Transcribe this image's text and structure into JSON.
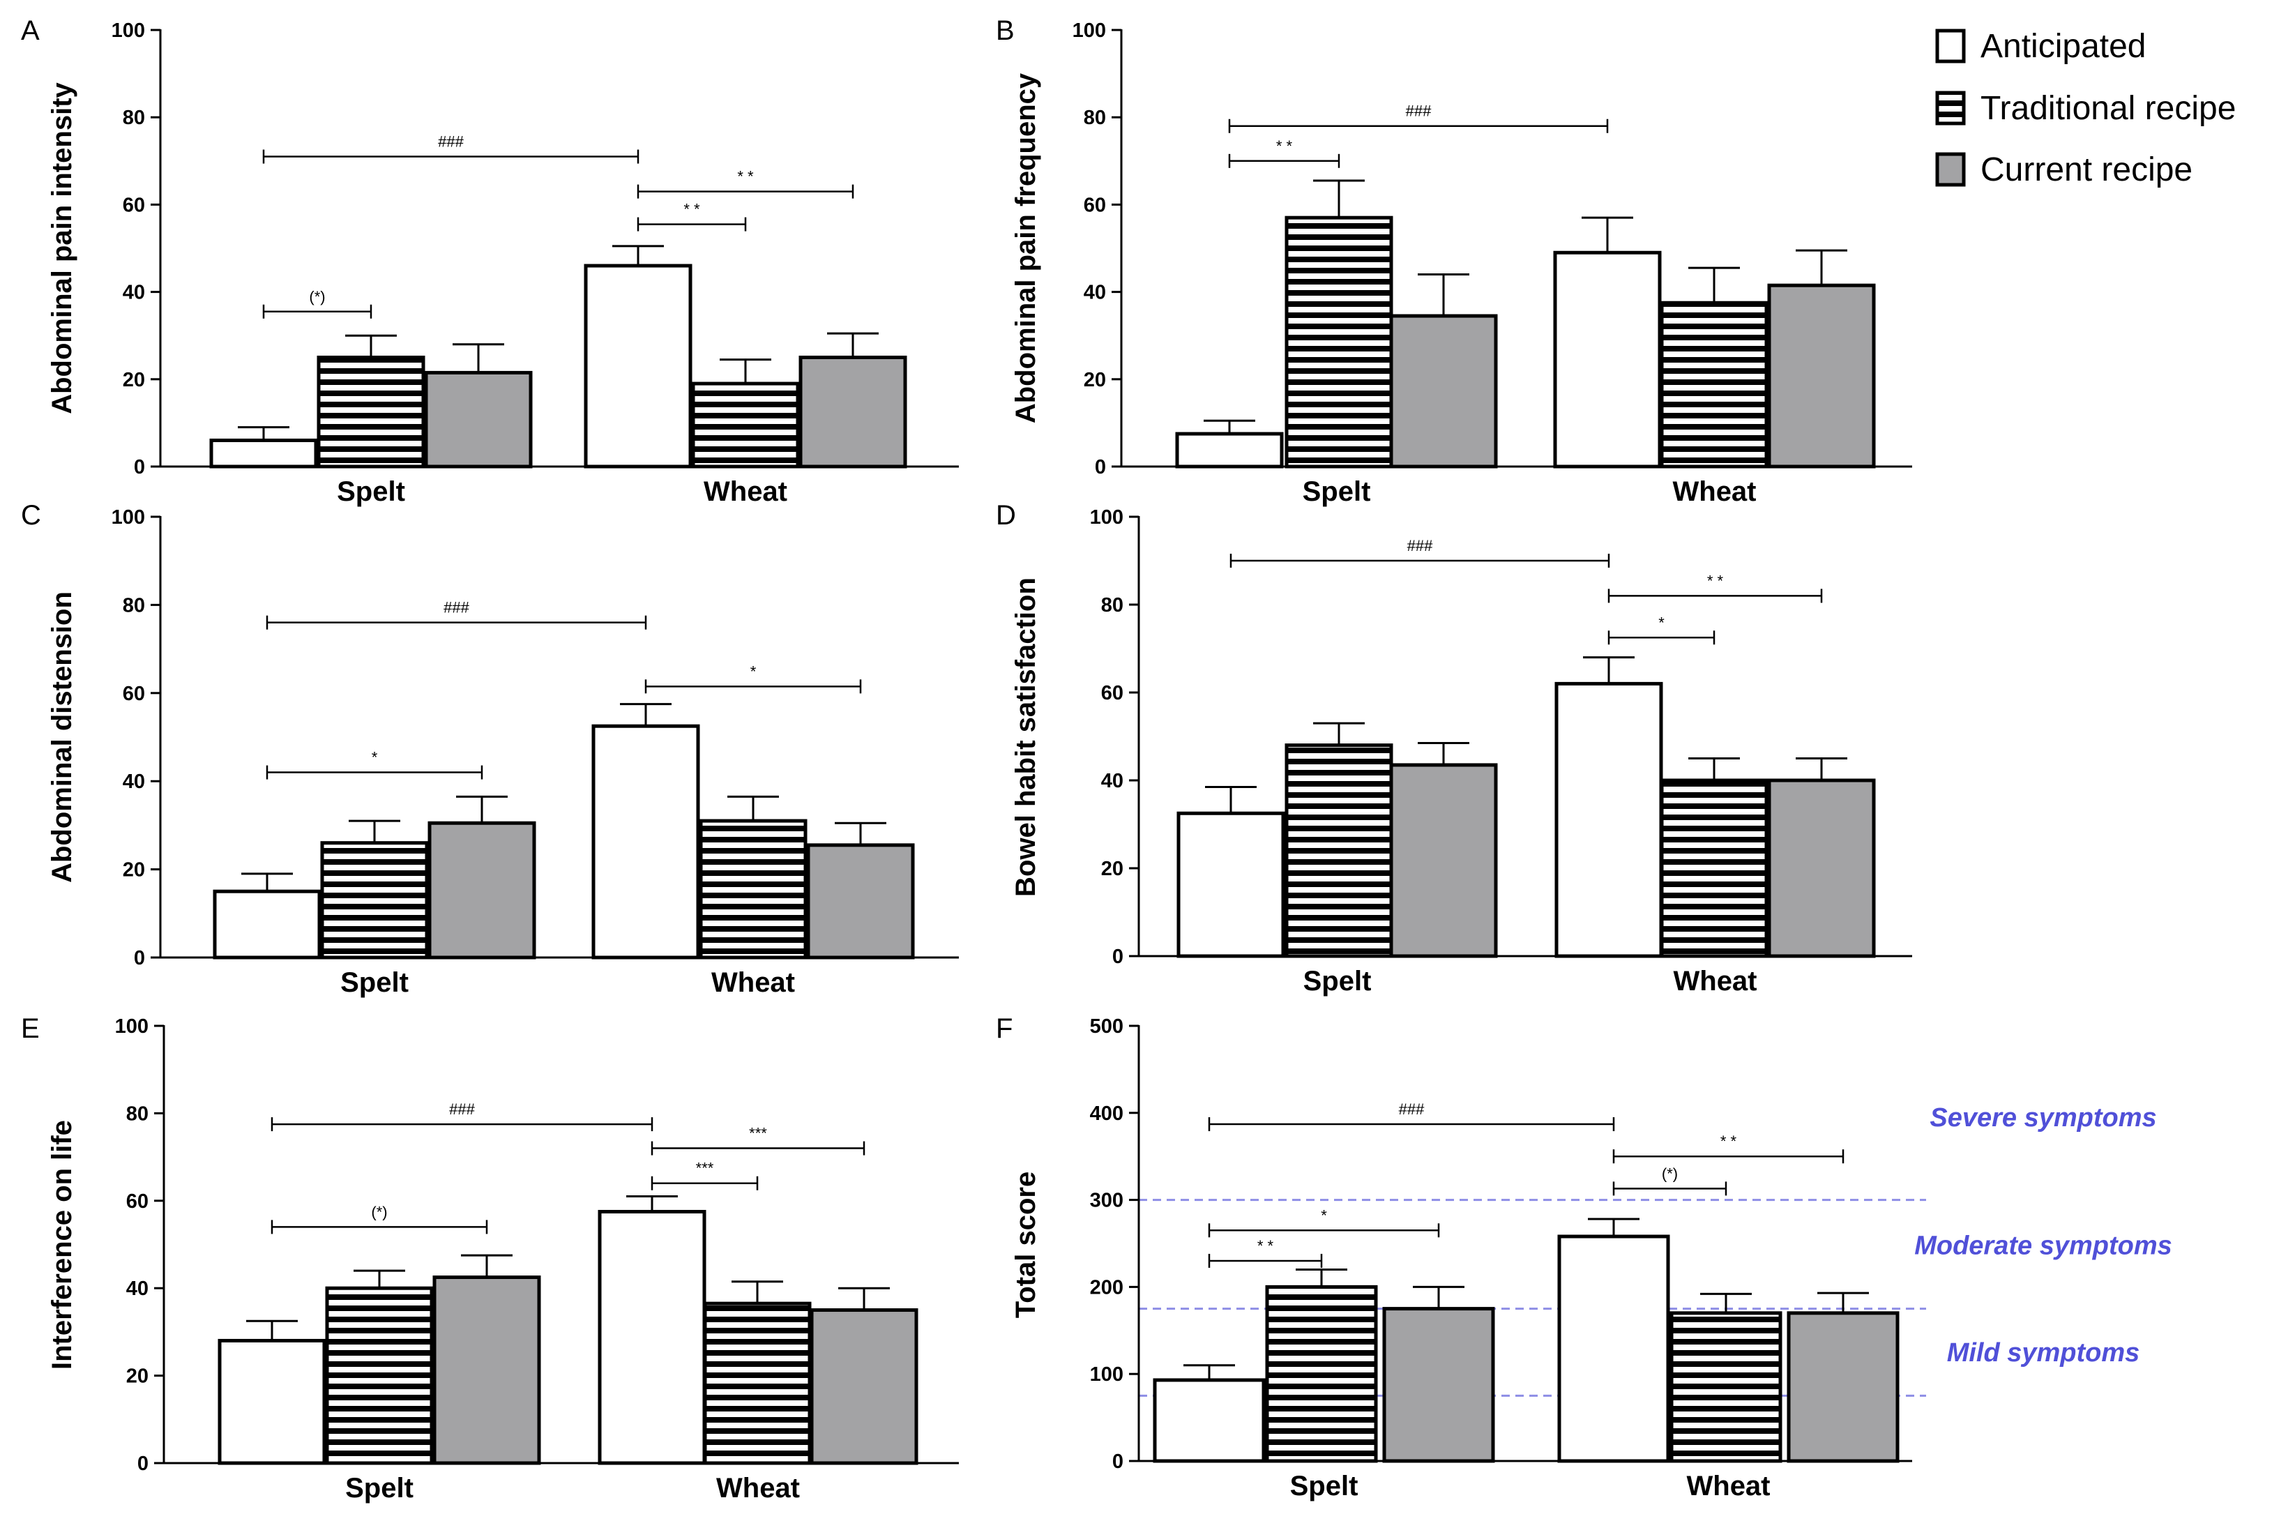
{
  "colors": {
    "anticipated": "#ffffff",
    "traditional_recipe": "stripes",
    "current_recipe": "#a3a3a5",
    "severity_line": "#8e8ee6",
    "severity_text": "#5050d8"
  },
  "legend": {
    "position": "top-right",
    "items": [
      {
        "label": "Anticipated",
        "swatch": "white"
      },
      {
        "label": "Traditional recipe",
        "swatch": "horizontal-stripes"
      },
      {
        "label": "Current recipe",
        "swatch": "gray"
      }
    ]
  },
  "chart_data": [
    {
      "panel": "A",
      "type": "bar",
      "ylabel": "Abdominal pain intensity",
      "ylim": [
        0,
        100
      ],
      "yticks": [
        0,
        20,
        40,
        60,
        80,
        100
      ],
      "categories": [
        "Spelt",
        "Wheat"
      ],
      "series": [
        {
          "name": "Anticipated",
          "values": [
            6,
            46
          ],
          "errors": [
            3,
            4.5
          ]
        },
        {
          "name": "Traditional recipe",
          "values": [
            25,
            19
          ],
          "errors": [
            5,
            5.5
          ]
        },
        {
          "name": "Current recipe",
          "values": [
            21.5,
            25
          ],
          "errors": [
            6.5,
            5.5
          ]
        }
      ],
      "annotations": [
        {
          "label": "###",
          "from": [
            0,
            0
          ],
          "to": [
            1,
            0
          ],
          "y": 71
        },
        {
          "label": "(*)",
          "from": [
            0,
            0
          ],
          "to": [
            0,
            1
          ],
          "y": 35.5
        },
        {
          "label": "* *",
          "from": [
            1,
            0
          ],
          "to": [
            1,
            1
          ],
          "y": 55.5
        },
        {
          "label": "* *",
          "from": [
            1,
            0
          ],
          "to": [
            1,
            2
          ],
          "y": 63
        }
      ],
      "severity_lines": []
    },
    {
      "panel": "B",
      "type": "bar",
      "ylabel": "Abdominal pain frequency",
      "ylim": [
        0,
        100
      ],
      "yticks": [
        0,
        20,
        40,
        60,
        80,
        100
      ],
      "categories": [
        "Spelt",
        "Wheat"
      ],
      "series": [
        {
          "name": "Anticipated",
          "values": [
            7.5,
            49
          ],
          "errors": [
            3,
            8
          ]
        },
        {
          "name": "Traditional recipe",
          "values": [
            57,
            37.5
          ],
          "errors": [
            8.5,
            8
          ]
        },
        {
          "name": "Current recipe",
          "values": [
            34.5,
            41.5
          ],
          "errors": [
            9.5,
            8
          ]
        }
      ],
      "annotations": [
        {
          "label": "###",
          "from": [
            0,
            0
          ],
          "to": [
            1,
            0
          ],
          "y": 78
        },
        {
          "label": "* *",
          "from": [
            0,
            0
          ],
          "to": [
            0,
            1
          ],
          "y": 70
        }
      ],
      "severity_lines": []
    },
    {
      "panel": "C",
      "type": "bar",
      "ylabel": "Abdominal distension",
      "ylim": [
        0,
        100
      ],
      "yticks": [
        0,
        20,
        40,
        60,
        80,
        100
      ],
      "categories": [
        "Spelt",
        "Wheat"
      ],
      "series": [
        {
          "name": "Anticipated",
          "values": [
            15,
            52.5
          ],
          "errors": [
            4,
            5
          ]
        },
        {
          "name": "Traditional recipe",
          "values": [
            26,
            31
          ],
          "errors": [
            5,
            5.5
          ]
        },
        {
          "name": "Current recipe",
          "values": [
            30.5,
            25.5
          ],
          "errors": [
            6,
            5
          ]
        }
      ],
      "annotations": [
        {
          "label": "###",
          "from": [
            0,
            0
          ],
          "to": [
            1,
            0
          ],
          "y": 76
        },
        {
          "label": "*",
          "from": [
            0,
            0
          ],
          "to": [
            0,
            2
          ],
          "y": 42
        },
        {
          "label": "*",
          "from": [
            1,
            0
          ],
          "to": [
            1,
            2
          ],
          "y": 61.5
        }
      ],
      "severity_lines": []
    },
    {
      "panel": "D",
      "type": "bar",
      "ylabel": "Bowel habit satisfaction",
      "ylim": [
        0,
        100
      ],
      "yticks": [
        0,
        20,
        40,
        60,
        80,
        100
      ],
      "categories": [
        "Spelt",
        "Wheat"
      ],
      "series": [
        {
          "name": "Anticipated",
          "values": [
            32.5,
            62
          ],
          "errors": [
            6,
            6
          ]
        },
        {
          "name": "Traditional recipe",
          "values": [
            48,
            40
          ],
          "errors": [
            5,
            5
          ]
        },
        {
          "name": "Current recipe",
          "values": [
            43.5,
            40
          ],
          "errors": [
            5,
            5
          ]
        }
      ],
      "annotations": [
        {
          "label": "###",
          "from": [
            0,
            0
          ],
          "to": [
            1,
            0
          ],
          "y": 90
        },
        {
          "label": "*",
          "from": [
            1,
            0
          ],
          "to": [
            1,
            1
          ],
          "y": 72.5
        },
        {
          "label": "* *",
          "from": [
            1,
            0
          ],
          "to": [
            1,
            2
          ],
          "y": 82
        }
      ],
      "severity_lines": []
    },
    {
      "panel": "E",
      "type": "bar",
      "ylabel": "Interference on life",
      "ylim": [
        0,
        100
      ],
      "yticks": [
        0,
        20,
        40,
        60,
        80,
        100
      ],
      "categories": [
        "Spelt",
        "Wheat"
      ],
      "series": [
        {
          "name": "Anticipated",
          "values": [
            28,
            57.5
          ],
          "errors": [
            4.5,
            3.5
          ]
        },
        {
          "name": "Traditional recipe",
          "values": [
            40,
            36.5
          ],
          "errors": [
            4,
            5
          ]
        },
        {
          "name": "Current recipe",
          "values": [
            42.5,
            35
          ],
          "errors": [
            5,
            5
          ]
        }
      ],
      "annotations": [
        {
          "label": "###",
          "from": [
            0,
            0
          ],
          "to": [
            1,
            0
          ],
          "y": 77.5
        },
        {
          "label": "(*)",
          "from": [
            0,
            0
          ],
          "to": [
            0,
            2
          ],
          "y": 54
        },
        {
          "label": "***",
          "from": [
            1,
            0
          ],
          "to": [
            1,
            1
          ],
          "y": 64
        },
        {
          "label": "***",
          "from": [
            1,
            0
          ],
          "to": [
            1,
            2
          ],
          "y": 72
        }
      ],
      "severity_lines": []
    },
    {
      "panel": "F",
      "type": "bar",
      "ylabel": "Total score",
      "ylim": [
        0,
        500
      ],
      "yticks": [
        0,
        100,
        200,
        300,
        400,
        500
      ],
      "categories": [
        "Spelt",
        "Wheat"
      ],
      "series": [
        {
          "name": "Anticipated",
          "values": [
            93,
            258
          ],
          "errors": [
            17,
            20
          ]
        },
        {
          "name": "Traditional recipe",
          "values": [
            200,
            170
          ],
          "errors": [
            20,
            22
          ]
        },
        {
          "name": "Current recipe",
          "values": [
            175,
            170
          ],
          "errors": [
            25,
            23
          ]
        }
      ],
      "annotations": [
        {
          "label": "###",
          "from": [
            0,
            0
          ],
          "to": [
            1,
            0
          ],
          "y": 387
        },
        {
          "label": "* *",
          "from": [
            0,
            0
          ],
          "to": [
            0,
            1
          ],
          "y": 230
        },
        {
          "label": "*",
          "from": [
            0,
            0
          ],
          "to": [
            0,
            2
          ],
          "y": 265
        },
        {
          "label": "(*)",
          "from": [
            1,
            0
          ],
          "to": [
            1,
            1
          ],
          "y": 313
        },
        {
          "label": "* *",
          "from": [
            1,
            0
          ],
          "to": [
            1,
            2
          ],
          "y": 350
        }
      ],
      "severity_lines": [
        75,
        175,
        300
      ],
      "region_labels": [
        {
          "text": "Severe symptoms",
          "y": 395
        },
        {
          "text": "Moderate symptoms",
          "y": 248
        },
        {
          "text": "Mild symptoms",
          "y": 125
        }
      ]
    }
  ]
}
